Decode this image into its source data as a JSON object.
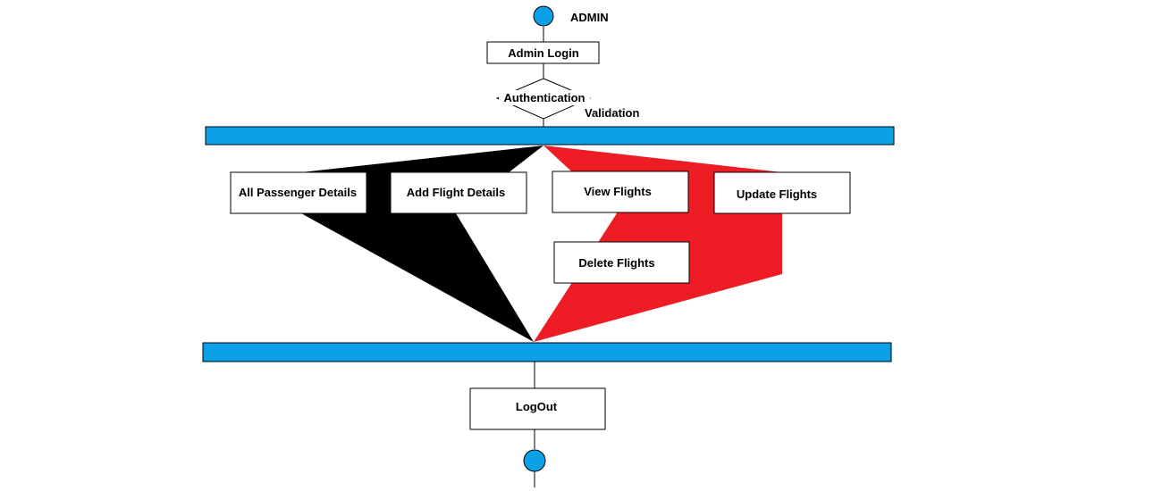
{
  "title": "ADMIN",
  "colors": {
    "node": "#0ba1e6",
    "bar": "#0ba1e6",
    "black_fill": "#000000",
    "red_fill": "#ee1c24",
    "stroke": "#000000"
  },
  "nodes": {
    "admin_login": "Admin Login",
    "authentication": "Authentication",
    "validation": "Validation",
    "all_passenger_details": "All Passenger Details",
    "add_flight_details": "Add Flight Details",
    "view_flights": "View Flights",
    "update_flights": "Update Flights",
    "delete_flights": "Delete Flights",
    "logout": "LogOut"
  }
}
